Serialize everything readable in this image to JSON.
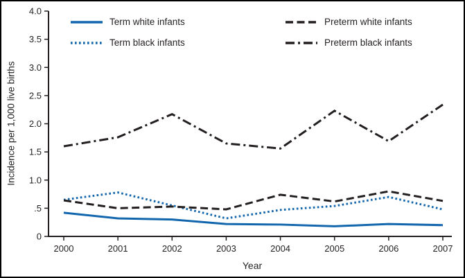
{
  "chart_data": {
    "type": "line",
    "title": "",
    "xlabel": "Year",
    "ylabel": "Incidence per 1,000 live births",
    "x": [
      2000,
      2001,
      2002,
      2003,
      2004,
      2005,
      2006,
      2007
    ],
    "ylim": [
      0,
      4.0
    ],
    "ytick_step": 0.5,
    "ytick_labels": [
      "0",
      ".5",
      "1.0",
      "1.5",
      "2.0",
      "2.5",
      "3.0",
      "3.5",
      "4.0"
    ],
    "grid": false,
    "legend_position": "inside-top-two-columns",
    "axis_color": "#231f20",
    "series": [
      {
        "name": "Term white infants",
        "color": "#1266ad",
        "dash": "solid",
        "values": [
          0.42,
          0.32,
          0.3,
          0.22,
          0.21,
          0.18,
          0.22,
          0.2
        ]
      },
      {
        "name": "Term black infants",
        "color": "#1266ad",
        "dash": "dotted",
        "values": [
          0.65,
          0.78,
          0.55,
          0.32,
          0.47,
          0.54,
          0.7,
          0.48
        ]
      },
      {
        "name": "Preterm white infants",
        "color": "#231f20",
        "dash": "dashed",
        "values": [
          0.64,
          0.5,
          0.53,
          0.48,
          0.74,
          0.62,
          0.8,
          0.63
        ]
      },
      {
        "name": "Preterm black infants",
        "color": "#231f20",
        "dash": "dashdot",
        "values": [
          1.6,
          1.76,
          2.17,
          1.65,
          1.56,
          2.23,
          1.69,
          2.34
        ]
      }
    ]
  }
}
